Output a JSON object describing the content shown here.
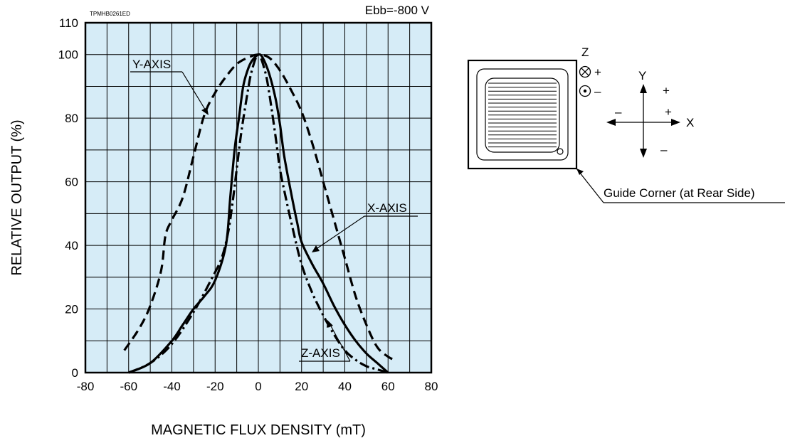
{
  "chart_data": {
    "type": "line",
    "doc_code": "TPMHB0261ED",
    "condition": "Ebb=-800 V",
    "xlabel": "MAGNETIC FLUX DENSITY (mT)",
    "ylabel": "RELATIVE OUTPUT (%)",
    "xlim": [
      -80,
      80
    ],
    "ylim": [
      0,
      110
    ],
    "x_ticks": [
      "-80",
      "-60",
      "-40",
      "-20",
      "0",
      "20",
      "40",
      "60",
      "80"
    ],
    "y_ticks": [
      "0",
      "20",
      "40",
      "60",
      "80",
      "100",
      "110"
    ],
    "grid": true,
    "series": [
      {
        "name": "X-AXIS",
        "style": "solid",
        "points": [
          [
            -60,
            0
          ],
          [
            -50,
            3
          ],
          [
            -40,
            10
          ],
          [
            -35,
            15
          ],
          [
            -30,
            20
          ],
          [
            -25,
            24
          ],
          [
            -20,
            29
          ],
          [
            -15,
            40
          ],
          [
            -13,
            55
          ],
          [
            -11,
            70
          ],
          [
            -9,
            80
          ],
          [
            -7,
            90
          ],
          [
            -5,
            95
          ],
          [
            -3,
            98
          ],
          [
            0,
            100
          ],
          [
            2,
            99
          ],
          [
            5,
            94
          ],
          [
            8,
            86
          ],
          [
            10,
            78
          ],
          [
            12,
            68
          ],
          [
            15,
            57
          ],
          [
            18,
            47
          ],
          [
            20,
            41
          ],
          [
            25,
            34
          ],
          [
            30,
            28
          ],
          [
            35,
            21
          ],
          [
            40,
            15
          ],
          [
            45,
            10
          ],
          [
            50,
            6
          ],
          [
            55,
            3
          ],
          [
            60,
            0
          ]
        ]
      },
      {
        "name": "Y-AXIS",
        "style": "dashed",
        "points": [
          [
            -62,
            7
          ],
          [
            -55,
            14
          ],
          [
            -50,
            21
          ],
          [
            -45,
            32
          ],
          [
            -43,
            43
          ],
          [
            -40,
            48
          ],
          [
            -35,
            55
          ],
          [
            -30,
            68
          ],
          [
            -25,
            81
          ],
          [
            -20,
            88
          ],
          [
            -15,
            93
          ],
          [
            -10,
            97
          ],
          [
            -5,
            99
          ],
          [
            0,
            100
          ],
          [
            5,
            99
          ],
          [
            10,
            95
          ],
          [
            15,
            89
          ],
          [
            20,
            82
          ],
          [
            25,
            72
          ],
          [
            30,
            60
          ],
          [
            35,
            48
          ],
          [
            40,
            36
          ],
          [
            45,
            24
          ],
          [
            50,
            15
          ],
          [
            55,
            8
          ],
          [
            60,
            5
          ],
          [
            63,
            4
          ]
        ]
      },
      {
        "name": "Z-AXIS",
        "style": "dashdot",
        "points": [
          [
            -60,
            0
          ],
          [
            -50,
            3
          ],
          [
            -40,
            9
          ],
          [
            -30,
            19
          ],
          [
            -22,
            29
          ],
          [
            -17,
            36
          ],
          [
            -14,
            44
          ],
          [
            -12,
            53
          ],
          [
            -10,
            64
          ],
          [
            -8,
            75
          ],
          [
            -5,
            88
          ],
          [
            -3,
            95
          ],
          [
            0,
            100
          ],
          [
            3,
            95
          ],
          [
            5,
            88
          ],
          [
            8,
            74
          ],
          [
            10,
            64
          ],
          [
            13,
            54
          ],
          [
            16,
            45
          ],
          [
            20,
            34
          ],
          [
            25,
            25
          ],
          [
            30,
            18
          ],
          [
            35,
            12
          ],
          [
            40,
            7
          ],
          [
            45,
            4
          ],
          [
            50,
            2
          ],
          [
            55,
            1
          ],
          [
            60,
            0
          ]
        ]
      }
    ]
  },
  "diagram": {
    "axis_z": "Z",
    "axis_y": "Y",
    "axis_x": "X",
    "z_plus": "+",
    "z_minus": "–",
    "y_plus": "+",
    "y_minus": "–",
    "x_plus": "+",
    "x_minus": "–",
    "guide_corner_label": "Guide Corner (at Rear Side)"
  },
  "colors": {
    "plot_background": "#d6ecf7",
    "grid": "#000000",
    "line": "#000000"
  }
}
